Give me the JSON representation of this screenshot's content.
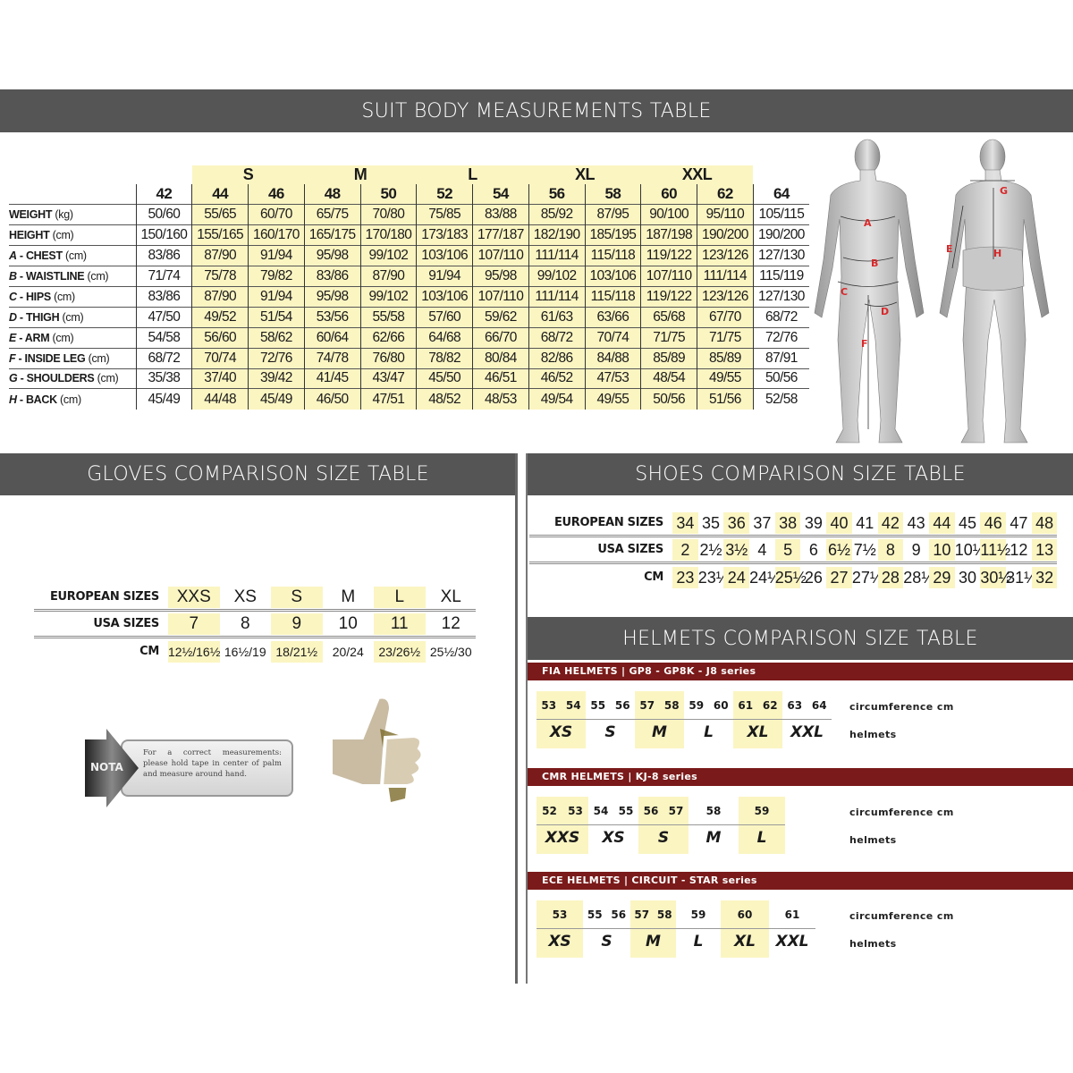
{
  "suit": {
    "title": "SUIT BODY MEASUREMENTS TABLE",
    "groups": [
      {
        "label": "S",
        "cols": [
          1,
          2
        ]
      },
      {
        "label": "M",
        "cols": [
          3,
          4
        ]
      },
      {
        "label": "L",
        "cols": [
          5,
          6
        ]
      },
      {
        "label": "XL",
        "cols": [
          7,
          8
        ]
      },
      {
        "label": "XXL",
        "cols": [
          9,
          10
        ]
      }
    ],
    "sizes": [
      "42",
      "44",
      "46",
      "48",
      "50",
      "52",
      "54",
      "56",
      "58",
      "60",
      "62",
      "64"
    ],
    "highlight_color": "#fbf5c2",
    "rows": [
      {
        "letter": "",
        "name": "WEIGHT",
        "unit": "(kg)",
        "values": [
          "50/60",
          "55/65",
          "60/70",
          "65/75",
          "70/80",
          "75/85",
          "83/88",
          "85/92",
          "87/95",
          "90/100",
          "95/110",
          "105/115"
        ]
      },
      {
        "letter": "",
        "name": "HEIGHT",
        "unit": "(cm)",
        "values": [
          "150/160",
          "155/165",
          "160/170",
          "165/175",
          "170/180",
          "173/183",
          "177/187",
          "182/190",
          "185/195",
          "187/198",
          "190/200",
          "190/200"
        ]
      },
      {
        "letter": "A",
        "name": " - CHEST",
        "unit": "(cm)",
        "values": [
          "83/86",
          "87/90",
          "91/94",
          "95/98",
          "99/102",
          "103/106",
          "107/110",
          "111/114",
          "115/118",
          "119/122",
          "123/126",
          "127/130"
        ]
      },
      {
        "letter": "B",
        "name": " - WAISTLINE",
        "unit": "(cm)",
        "values": [
          "71/74",
          "75/78",
          "79/82",
          "83/86",
          "87/90",
          "91/94",
          "95/98",
          "99/102",
          "103/106",
          "107/110",
          "111/114",
          "115/119"
        ]
      },
      {
        "letter": "C",
        "name": " - HIPS",
        "unit": "(cm)",
        "values": [
          "83/86",
          "87/90",
          "91/94",
          "95/98",
          "99/102",
          "103/106",
          "107/110",
          "111/114",
          "115/118",
          "119/122",
          "123/126",
          "127/130"
        ]
      },
      {
        "letter": "D",
        "name": " - THIGH",
        "unit": "(cm)",
        "values": [
          "47/50",
          "49/52",
          "51/54",
          "53/56",
          "55/58",
          "57/60",
          "59/62",
          "61/63",
          "63/66",
          "65/68",
          "67/70",
          "68/72"
        ]
      },
      {
        "letter": "E",
        "name": " - ARM",
        "unit": "(cm)",
        "values": [
          "54/58",
          "56/60",
          "58/62",
          "60/64",
          "62/66",
          "64/68",
          "66/70",
          "68/72",
          "70/74",
          "71/75",
          "71/75",
          "72/76"
        ]
      },
      {
        "letter": "F",
        "name": " - INSIDE LEG",
        "unit": "(cm)",
        "values": [
          "68/72",
          "70/74",
          "72/76",
          "74/78",
          "76/80",
          "78/82",
          "80/84",
          "82/86",
          "84/88",
          "85/89",
          "85/89",
          "87/91"
        ]
      },
      {
        "letter": "G",
        "name": " - SHOULDERS",
        "unit": "(cm)",
        "values": [
          "35/38",
          "37/40",
          "39/42",
          "41/45",
          "43/47",
          "45/50",
          "46/51",
          "46/52",
          "47/53",
          "48/54",
          "49/55",
          "50/56"
        ]
      },
      {
        "letter": "H",
        "name": " - BACK",
        "unit": "(cm)",
        "values": [
          "45/49",
          "44/48",
          "45/49",
          "46/50",
          "47/51",
          "48/52",
          "48/53",
          "49/54",
          "49/55",
          "50/56",
          "51/56",
          "52/58"
        ]
      }
    ],
    "figure_labels": {
      "front": [
        "A",
        "B",
        "C",
        "D",
        "E",
        "F"
      ],
      "back": [
        "G",
        "E",
        "H"
      ]
    }
  },
  "gloves": {
    "title": "GLOVES COMPARISON SIZE TABLE",
    "row_labels": [
      "EUROPEAN SIZES",
      "USA SIZES",
      "CM"
    ],
    "european": [
      "XXS",
      "XS",
      "S",
      "M",
      "L",
      "XL"
    ],
    "usa": [
      "7",
      "8",
      "9",
      "10",
      "11",
      "12"
    ],
    "cm": [
      "12½/16½",
      "16½/19",
      "18/21½",
      "20/24",
      "23/26½",
      "25½/30"
    ],
    "highlight": [
      0,
      2,
      4
    ],
    "note_badge": "NOTA",
    "note_text": "For a correct measurements: please hold tape in center of palm and measure around hand."
  },
  "shoes": {
    "title": "SHOES COMPARISON SIZE TABLE",
    "row_labels": [
      "EUROPEAN SIZES",
      "USA SIZES",
      "CM"
    ],
    "european": [
      "34",
      "35",
      "36",
      "37",
      "38",
      "39",
      "40",
      "41",
      "42",
      "43",
      "44",
      "45",
      "46",
      "47",
      "48"
    ],
    "usa": [
      "2",
      "2½",
      "3½",
      "4",
      "5",
      "6",
      "6½",
      "7½",
      "8",
      "9",
      "10",
      "10½",
      "11½",
      "12",
      "13"
    ],
    "cm": [
      "23",
      "23½",
      "24",
      "24½",
      "25½",
      "26",
      "27",
      "27½",
      "28",
      "28½",
      "29",
      "30",
      "30½",
      "31½",
      "32"
    ],
    "highlight": [
      0,
      2,
      4,
      6,
      8,
      10,
      12,
      14
    ]
  },
  "helmets": {
    "title": "HELMETS COMPARISON SIZE TABLE",
    "circ_label": "circumference cm",
    "size_label": "helmets",
    "sections": [
      {
        "title": "FIA HELMETS  |  GP8 - GP8K - J8 series",
        "groups": [
          {
            "size": "XS",
            "cm": [
              "53",
              "54"
            ],
            "hl": true
          },
          {
            "size": "S",
            "cm": [
              "55",
              "56"
            ],
            "hl": false
          },
          {
            "size": "M",
            "cm": [
              "57",
              "58"
            ],
            "hl": true
          },
          {
            "size": "L",
            "cm": [
              "59",
              "60"
            ],
            "hl": false
          },
          {
            "size": "XL",
            "cm": [
              "61",
              "62"
            ],
            "hl": true
          },
          {
            "size": "XXL",
            "cm": [
              "63",
              "64"
            ],
            "hl": false
          }
        ]
      },
      {
        "title": "CMR HELMETS  |  KJ-8 series",
        "groups": [
          {
            "size": "XXS",
            "cm": [
              "52",
              "53"
            ],
            "hl": true
          },
          {
            "size": "XS",
            "cm": [
              "54",
              "55"
            ],
            "hl": false
          },
          {
            "size": "S",
            "cm": [
              "56",
              "57"
            ],
            "hl": true
          },
          {
            "size": "M",
            "cm": [
              "58"
            ],
            "hl": false
          },
          {
            "size": "L",
            "cm": [
              "59"
            ],
            "hl": true
          }
        ]
      },
      {
        "title": "ECE HELMETS  |  CIRCUIT - STAR series",
        "groups": [
          {
            "size": "XS",
            "cm": [
              "53"
            ],
            "hl": true
          },
          {
            "size": "S",
            "cm": [
              "55",
              "56"
            ],
            "hl": false
          },
          {
            "size": "M",
            "cm": [
              "57",
              "58"
            ],
            "hl": true
          },
          {
            "size": "L",
            "cm": [
              "59"
            ],
            "hl": false
          },
          {
            "size": "XL",
            "cm": [
              "60"
            ],
            "hl": true
          },
          {
            "size": "XXL",
            "cm": [
              "61"
            ],
            "hl": false
          }
        ]
      }
    ],
    "section_color": "#7a1a1a"
  }
}
